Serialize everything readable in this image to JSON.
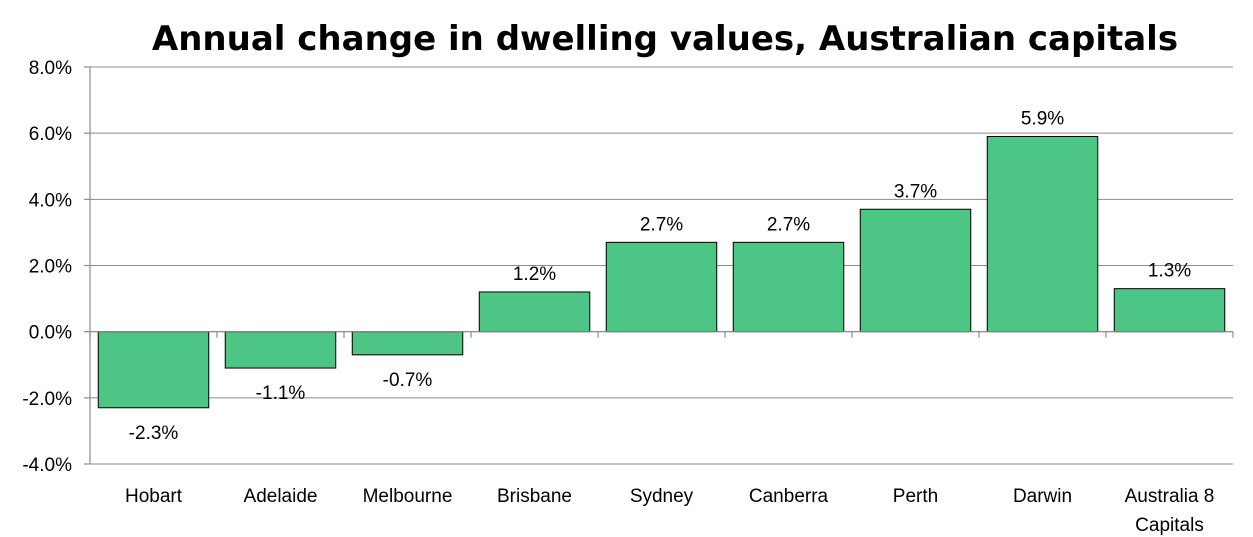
{
  "chart_data": {
    "type": "bar",
    "title": "Annual change in dwelling values, Australian capitals",
    "xlabel": "",
    "ylabel": "",
    "categories": [
      "Hobart",
      "Adelaide",
      "Melbourne",
      "Brisbane",
      "Sydney",
      "Canberra",
      "Perth",
      "Darwin",
      "Australia 8 Capitals"
    ],
    "category_lines": [
      [
        "Hobart"
      ],
      [
        "Adelaide"
      ],
      [
        "Melbourne"
      ],
      [
        "Brisbane"
      ],
      [
        "Sydney"
      ],
      [
        "Canberra"
      ],
      [
        "Perth"
      ],
      [
        "Darwin"
      ],
      [
        "Australia 8",
        "Capitals"
      ]
    ],
    "values": [
      -2.3,
      -1.1,
      -0.7,
      1.2,
      2.7,
      2.7,
      3.7,
      5.9,
      1.3
    ],
    "data_labels": [
      "-2.3%",
      "-1.1%",
      "-0.7%",
      "1.2%",
      "2.7%",
      "2.7%",
      "3.7%",
      "5.9%",
      "1.3%"
    ],
    "ylim": [
      -4,
      8
    ],
    "yticks": [
      -4,
      -2,
      0,
      2,
      4,
      6,
      8
    ],
    "ytick_labels": [
      "-4.0%",
      "-2.0%",
      "0.0%",
      "2.0%",
      "4.0%",
      "6.0%",
      "8.0%"
    ],
    "grid": true,
    "legend": "none",
    "bar_color": "#4dc585"
  }
}
